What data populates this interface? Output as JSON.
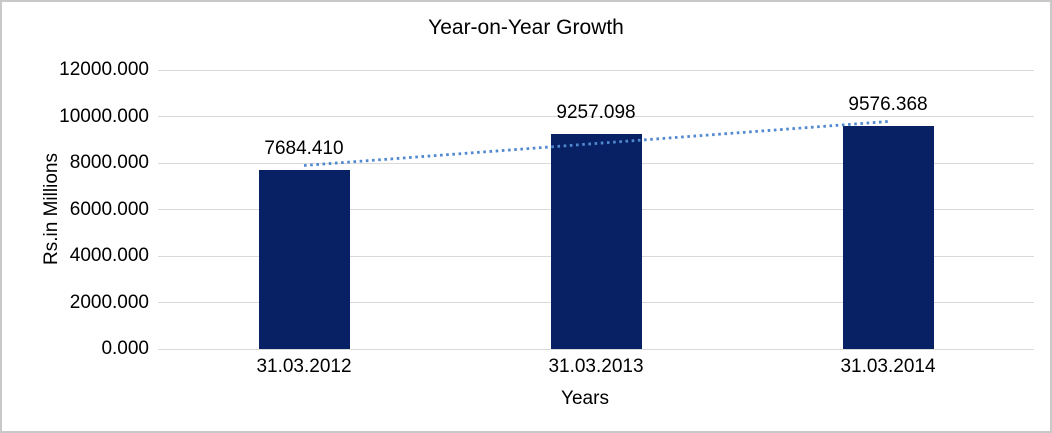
{
  "chart_data": {
    "type": "bar",
    "title": "Year-on-Year Growth",
    "xlabel": "Years",
    "ylabel": "Rs.in Millions",
    "categories": [
      "31.03.2012",
      "31.03.2013",
      "31.03.2014"
    ],
    "values": [
      7684.41,
      9257.098,
      9576.368
    ],
    "data_labels": [
      "7684.410",
      "9257.098",
      "9576.368"
    ],
    "ylim": [
      0,
      12000
    ],
    "ytick_step": 2000,
    "ytick_labels": [
      "0.000",
      "2000.000",
      "4000.000",
      "6000.000",
      "8000.000",
      "10000.000",
      "12000.000"
    ],
    "grid": "horizontal",
    "legend": "none",
    "trendline": {
      "type": "linear",
      "style": "dotted"
    },
    "colors": {
      "bar": "#082164",
      "trendline": "#5089cf",
      "gridline": "#d9d9d9",
      "text": "#000000",
      "border": "#c8c8c8"
    }
  }
}
